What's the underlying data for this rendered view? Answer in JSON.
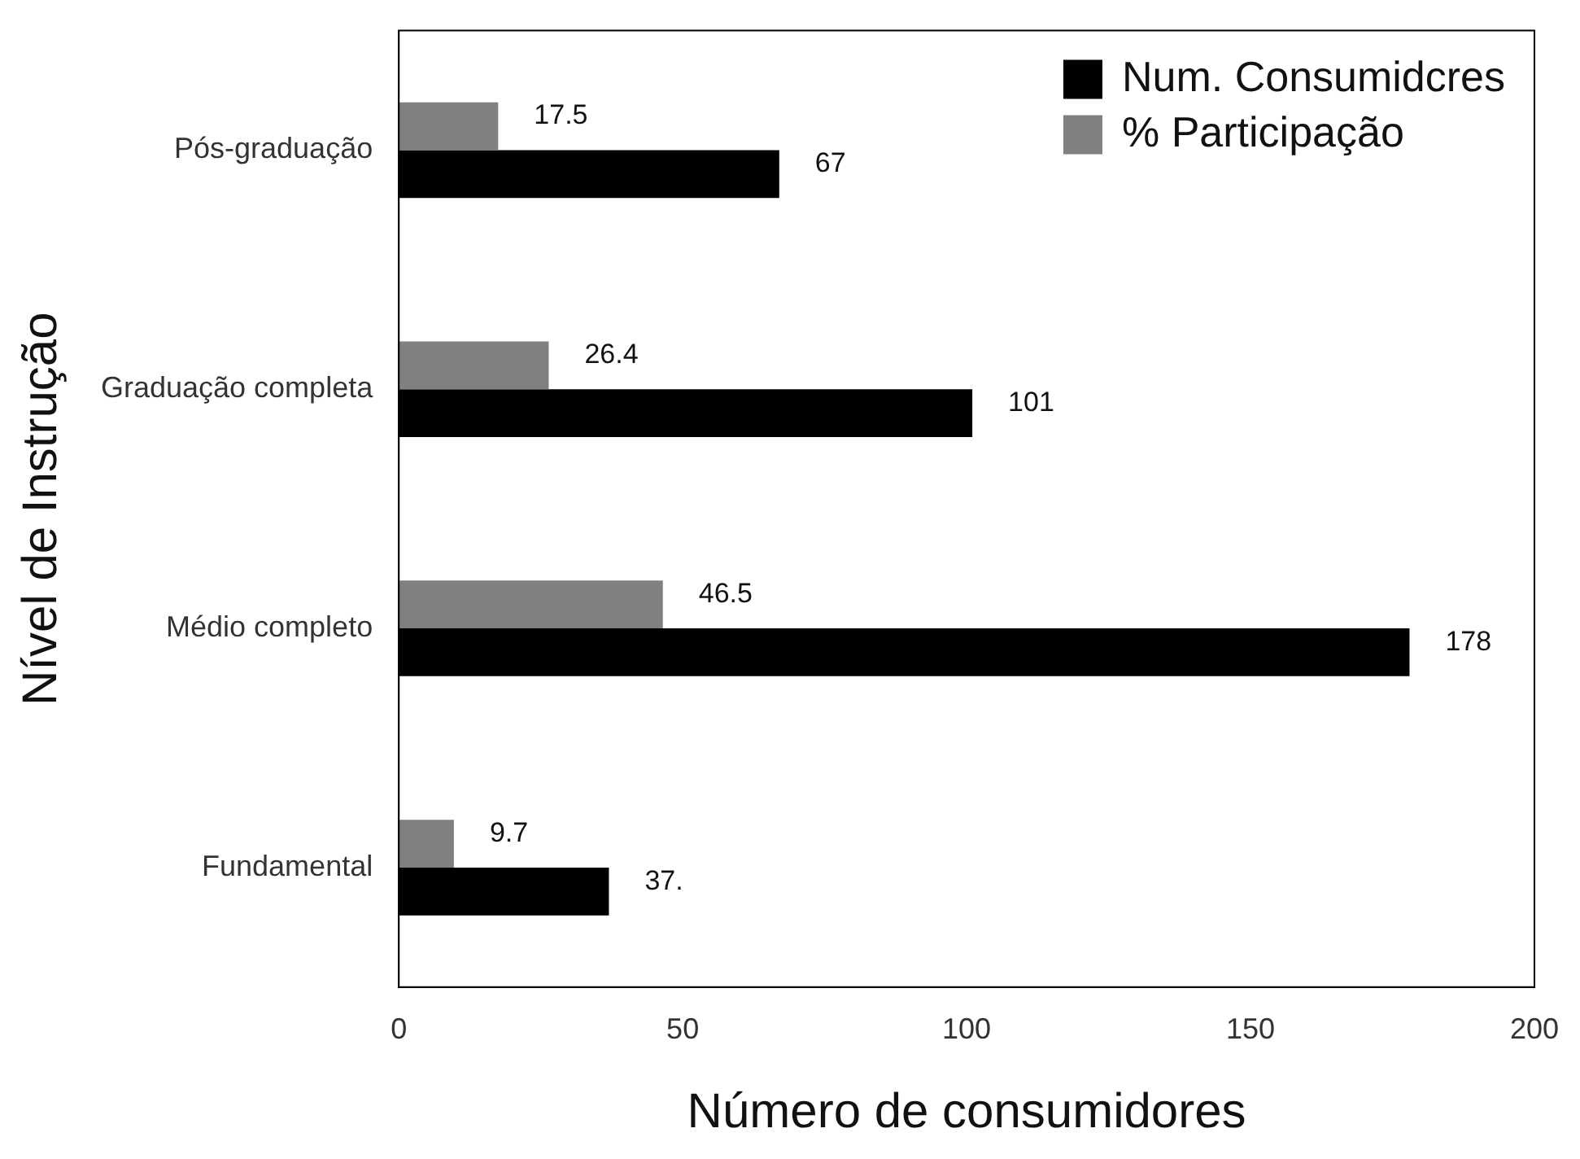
{
  "chart_data": {
    "type": "bar",
    "orientation": "horizontal",
    "xlabel": "Número de consumidores",
    "ylabel": "Nível de Instrução",
    "categories": [
      "Pós-graduação",
      "Graduação completa",
      "Médio completo",
      "Fundamental"
    ],
    "series": [
      {
        "name": "% Participação",
        "color": "#808080",
        "values": [
          17.5,
          26.4,
          46.5,
          9.7
        ],
        "value_labels": [
          "17.5",
          "26.4",
          "46.5",
          "9.7"
        ]
      },
      {
        "name": "Num. Consumidcres",
        "color": "#000000",
        "values": [
          67,
          101,
          178,
          37
        ],
        "value_labels": [
          "67",
          "101",
          "178",
          "37."
        ]
      }
    ],
    "xlim": [
      0,
      200
    ],
    "xticks": [
      0,
      50,
      100,
      150,
      200
    ],
    "grid": false,
    "legend": "top right"
  }
}
